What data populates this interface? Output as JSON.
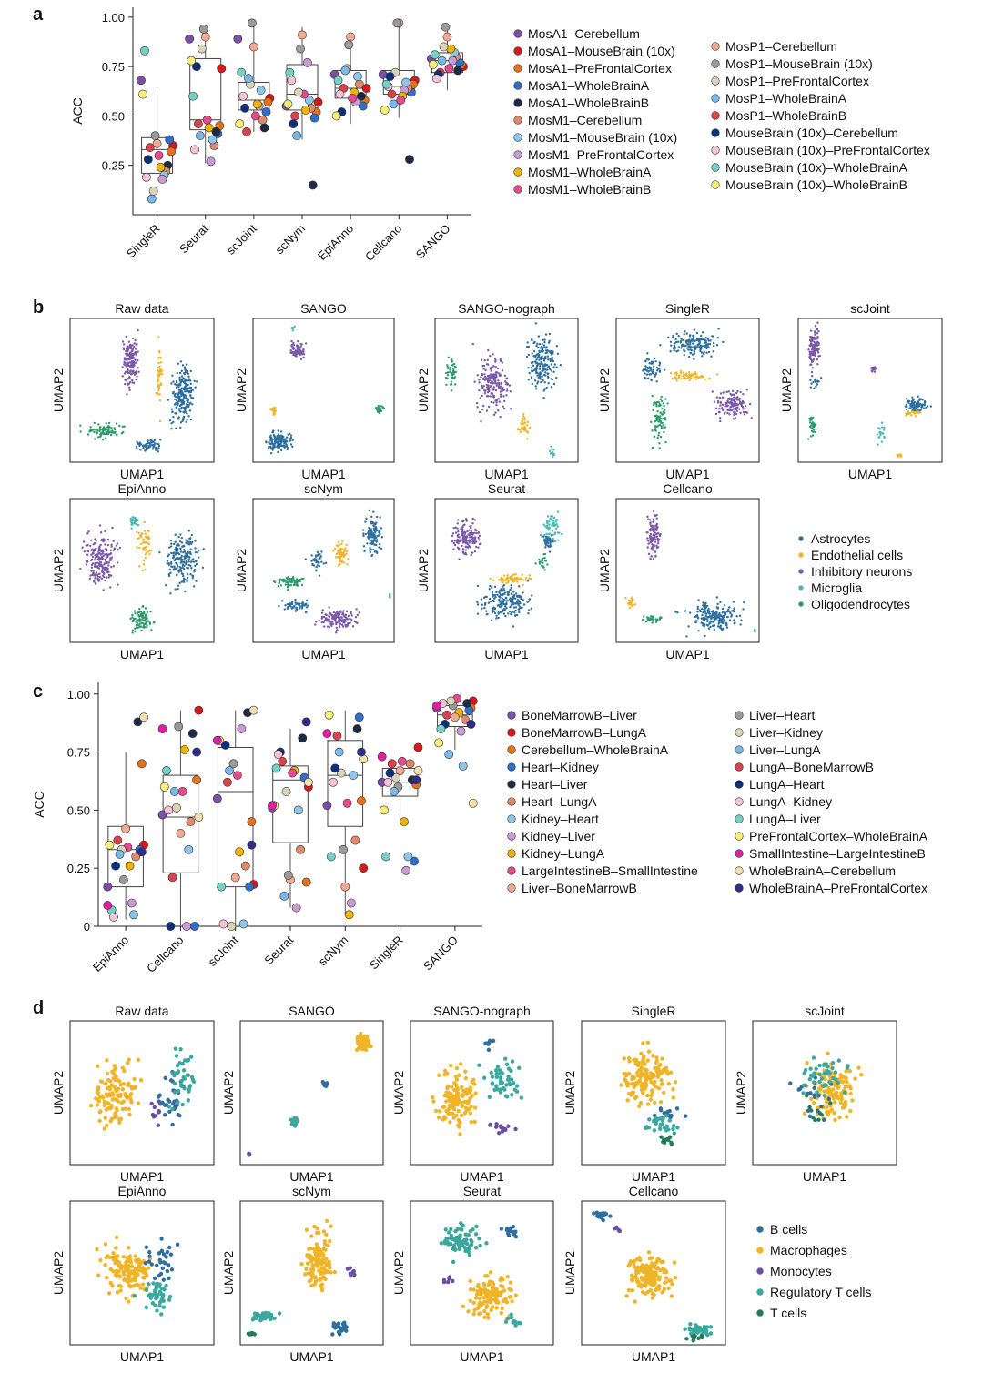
{
  "panels": {
    "a": {
      "label": "a"
    },
    "b": {
      "label": "b"
    },
    "c": {
      "label": "c"
    },
    "d": {
      "label": "d"
    }
  },
  "colors": {
    "Astrocytes": "#2e6f9e",
    "Endothelial": "#f0b429",
    "Inhibitory": "#7a5aa8",
    "Microglia": "#4bb7b0",
    "Oligodendrocytes": "#2e9a6a",
    "B": "#2e6f9e",
    "Mac": "#f0b429",
    "Mono": "#6b4ea3",
    "Treg": "#3aa89e",
    "Tc": "#247a5c"
  },
  "chart_data": [
    {
      "id": "a",
      "type": "box-scatter",
      "ylabel": "ACC",
      "ylim": [
        0,
        1.05
      ],
      "yticks": [
        "1.00",
        "0.75",
        "0.50",
        "0.25"
      ],
      "ytick_values": [
        1.0,
        0.75,
        0.5,
        0.25
      ],
      "categories": [
        "SingleR",
        "Seurat",
        "scJoint",
        "scNym",
        "EpiAnno",
        "Cellcano",
        "SANGO"
      ],
      "boxes": [
        {
          "q1": 0.21,
          "median": 0.33,
          "q3": 0.39,
          "wlo": 0.1,
          "whi": 0.63
        },
        {
          "q1": 0.43,
          "median": 0.48,
          "q3": 0.79,
          "wlo": 0.26,
          "whi": 0.9
        },
        {
          "q1": 0.53,
          "median": 0.58,
          "q3": 0.67,
          "wlo": 0.42,
          "whi": 0.97
        },
        {
          "q1": 0.53,
          "median": 0.61,
          "q3": 0.76,
          "wlo": 0.38,
          "whi": 0.95
        },
        {
          "q1": 0.59,
          "median": 0.64,
          "q3": 0.73,
          "wlo": 0.46,
          "whi": 0.9
        },
        {
          "q1": 0.61,
          "median": 0.65,
          "q3": 0.73,
          "wlo": 0.49,
          "whi": 0.97
        },
        {
          "q1": 0.72,
          "median": 0.78,
          "q3": 0.82,
          "wlo": 0.63,
          "whi": 0.95
        }
      ],
      "legend": [
        "MosA1–Cerebellum",
        "MosA1–MouseBrain (10x)",
        "MosA1–PreFrontalCortex",
        "MosA1–WholeBrainA",
        "MosA1–WholeBrainB",
        "MosM1–Cerebellum",
        "MosM1–MouseBrain (10x)",
        "MosM1–PreFrontalCortex",
        "MosM1–WholeBrainA",
        "MosM1–WholeBrainB",
        "MosP1–Cerebellum",
        "MosP1–MouseBrain (10x)",
        "MosP1–PreFrontalCortex",
        "MosP1–WholeBrainA",
        "MosP1–WholeBrainB",
        "MouseBrain (10x)–Cerebellum",
        "MouseBrain (10x)–PreFrontalCortex",
        "MouseBrain (10x)–WholeBrainA",
        "MouseBrain (10x)–WholeBrainB"
      ],
      "legend_colors": [
        "#7b4fa6",
        "#d7191c",
        "#e6731a",
        "#2f6fc9",
        "#1d2a44",
        "#e08a6c",
        "#8cc6e8",
        "#c89ad6",
        "#f0b400",
        "#e84a8e",
        "#f2a98f",
        "#9a9a9a",
        "#d9d3b8",
        "#79b8e8",
        "#d9434b",
        "#0b2f7a",
        "#f4c3d5",
        "#74d1c4",
        "#f7ee7a"
      ],
      "points": [
        [
          0.68,
          0.35,
          0.32,
          0.38,
          0.25,
          0.22,
          0.2,
          0.18,
          0.24,
          0.3,
          0.36,
          0.4,
          0.12,
          0.08,
          0.34,
          0.28,
          0.19,
          0.83,
          0.61
        ],
        [
          0.89,
          0.74,
          0.45,
          0.41,
          0.42,
          0.35,
          0.38,
          0.27,
          0.44,
          0.48,
          0.9,
          0.94,
          0.84,
          0.4,
          0.46,
          0.75,
          0.33,
          0.6,
          0.78
        ],
        [
          0.89,
          0.59,
          0.57,
          0.52,
          0.44,
          0.48,
          0.63,
          0.55,
          0.56,
          0.5,
          0.85,
          0.97,
          0.66,
          0.69,
          0.42,
          0.54,
          0.6,
          0.72,
          0.46
        ],
        [
          0.55,
          0.57,
          0.52,
          0.49,
          0.15,
          0.54,
          0.58,
          0.77,
          0.53,
          0.61,
          0.91,
          0.84,
          0.62,
          0.4,
          0.5,
          0.46,
          0.68,
          0.72,
          0.56
        ],
        [
          0.71,
          0.64,
          0.58,
          0.55,
          0.6,
          0.66,
          0.7,
          0.57,
          0.62,
          0.59,
          0.9,
          0.86,
          0.74,
          0.73,
          0.64,
          0.52,
          0.61,
          0.68,
          0.5
        ],
        [
          0.71,
          0.68,
          0.66,
          0.62,
          0.28,
          0.64,
          0.67,
          0.63,
          0.6,
          0.58,
          0.97,
          0.97,
          0.72,
          0.56,
          0.61,
          0.7,
          0.65,
          0.66,
          0.53
        ],
        [
          0.79,
          0.75,
          0.76,
          0.77,
          0.73,
          0.8,
          0.82,
          0.78,
          0.84,
          0.74,
          0.9,
          0.95,
          0.85,
          0.78,
          0.72,
          0.71,
          0.69,
          0.81,
          0.76
        ]
      ]
    },
    {
      "id": "b",
      "type": "scatter",
      "panels": [
        "Raw data",
        "SANGO",
        "SANGO-nograph",
        "SingleR",
        "scJoint",
        "EpiAnno",
        "scNym",
        "Seurat",
        "Cellcano"
      ],
      "xlabel": "UMAP1",
      "ylabel": "UMAP2",
      "legend": [
        "Astrocytes",
        "Endothelial cells",
        "Inhibitory neurons",
        "Microglia",
        "Oligodendrocytes"
      ]
    },
    {
      "id": "c",
      "type": "box-scatter",
      "ylabel": "ACC",
      "ylim": [
        0,
        1.05
      ],
      "yticks": [
        "1.00",
        "0.75",
        "0.50",
        "0.25",
        "0"
      ],
      "ytick_values": [
        1.0,
        0.75,
        0.5,
        0.25,
        0
      ],
      "categories": [
        "EpiAnno",
        "Cellcano",
        "scJoint",
        "Seurat",
        "scNym",
        "SingleR",
        "SANGO"
      ],
      "boxes": [
        {
          "q1": 0.17,
          "median": 0.33,
          "q3": 0.43,
          "wlo": 0.03,
          "whi": 0.75
        },
        {
          "q1": 0.23,
          "median": 0.47,
          "q3": 0.65,
          "wlo": 0.0,
          "whi": 0.93
        },
        {
          "q1": 0.17,
          "median": 0.58,
          "q3": 0.77,
          "wlo": 0.0,
          "whi": 0.93
        },
        {
          "q1": 0.36,
          "median": 0.63,
          "q3": 0.69,
          "wlo": 0.08,
          "whi": 0.85
        },
        {
          "q1": 0.43,
          "median": 0.65,
          "q3": 0.8,
          "wlo": 0.05,
          "whi": 0.93
        },
        {
          "q1": 0.56,
          "median": 0.62,
          "q3": 0.68,
          "wlo": 0.48,
          "whi": 0.75
        },
        {
          "q1": 0.86,
          "median": 0.91,
          "q3": 0.95,
          "wlo": 0.76,
          "whi": 0.99
        }
      ],
      "legend": [
        "BoneMarrowB–Liver",
        "BoneMarrowB–LungA",
        "Cerebellum–WholeBrainA",
        "Heart–Kidney",
        "Heart–Liver",
        "Heart–LungA",
        "Kidney–Heart",
        "Kidney–Liver",
        "Kidney–LungA",
        "LargeIntestineB–SmallIntestine",
        "Liver–BoneMarrowB",
        "Liver–Heart",
        "Liver–Kidney",
        "Liver–LungA",
        "LungA–BoneMarrowB",
        "LungA–Heart",
        "LungA–Kidney",
        "LungA–Liver",
        "PreFrontalCortex–WholeBrainA",
        "SmallIntestine–LargeIntestineB",
        "WholeBrainA–Cerebellum",
        "WholeBrainA–PreFrontalCortex"
      ],
      "legend_colors": [
        "#7b4fa6",
        "#d7191c",
        "#e6731a",
        "#2f6fc9",
        "#1d2a44",
        "#e08a6c",
        "#8cc6e8",
        "#c89ad6",
        "#f0b400",
        "#e84a8e",
        "#f2a98f",
        "#9a9a9a",
        "#d9d3b8",
        "#79b8e8",
        "#d9434b",
        "#0b2f7a",
        "#f4c3d5",
        "#74d1c4",
        "#f7ee7a",
        "#e020a0",
        "#f0e0b0",
        "#2d2f8a"
      ],
      "points": [
        [
          0.17,
          0.35,
          0.7,
          0.33,
          0.88,
          0.3,
          0.05,
          0.1,
          0.26,
          0.34,
          0.42,
          0.2,
          0.33,
          0.31,
          0.37,
          0.26,
          0.04,
          0.07,
          0.35,
          0.09,
          0.9,
          0.32
        ],
        [
          0.48,
          0.93,
          0.63,
          0.0,
          0.83,
          0.45,
          0.33,
          0.0,
          0.76,
          0.58,
          0.4,
          0.86,
          0.51,
          0.58,
          0.21,
          0.0,
          0.5,
          0.67,
          0.6,
          0.85,
          0.47,
          0.75
        ],
        [
          0.55,
          0.18,
          0.45,
          0.17,
          0.92,
          0.26,
          0.01,
          0.85,
          0.32,
          0.65,
          0.21,
          0.7,
          0.0,
          0.67,
          0.62,
          0.78,
          0.01,
          0.17,
          0.8,
          0.8,
          0.93,
          0.35
        ],
        [
          0.51,
          0.6,
          0.19,
          0.64,
          0.81,
          0.33,
          0.5,
          0.08,
          0.67,
          0.66,
          0.2,
          0.22,
          0.58,
          0.13,
          0.71,
          0.75,
          0.74,
          0.68,
          0.52,
          0.52,
          0.62,
          0.88
        ],
        [
          0.52,
          0.25,
          0.54,
          0.9,
          0.85,
          0.37,
          0.65,
          0.1,
          0.05,
          0.53,
          0.17,
          0.33,
          0.66,
          0.75,
          0.82,
          0.68,
          0.62,
          0.3,
          0.91,
          0.83,
          0.72,
          0.75
        ],
        [
          0.62,
          0.77,
          0.61,
          0.28,
          0.63,
          0.7,
          0.3,
          0.24,
          0.45,
          0.71,
          0.67,
          0.6,
          0.64,
          0.58,
          0.7,
          0.66,
          0.62,
          0.3,
          0.5,
          0.73,
          0.67,
          0.63
        ],
        [
          0.94,
          0.97,
          0.94,
          0.93,
          0.96,
          0.89,
          0.69,
          0.84,
          0.92,
          0.98,
          0.9,
          0.95,
          0.97,
          0.74,
          0.91,
          0.87,
          0.96,
          0.85,
          0.79,
          0.95,
          0.53,
          0.87
        ]
      ]
    },
    {
      "id": "d",
      "type": "scatter",
      "panels": [
        "Raw data",
        "SANGO",
        "SANGO-nograph",
        "SingleR",
        "scJoint",
        "EpiAnno",
        "scNym",
        "Seurat",
        "Cellcano"
      ],
      "xlabel": "UMAP1",
      "ylabel": "UMAP2",
      "legend": [
        "B cells",
        "Macrophages",
        "Monocytes",
        "Regulatory T cells",
        "T cells"
      ]
    }
  ]
}
